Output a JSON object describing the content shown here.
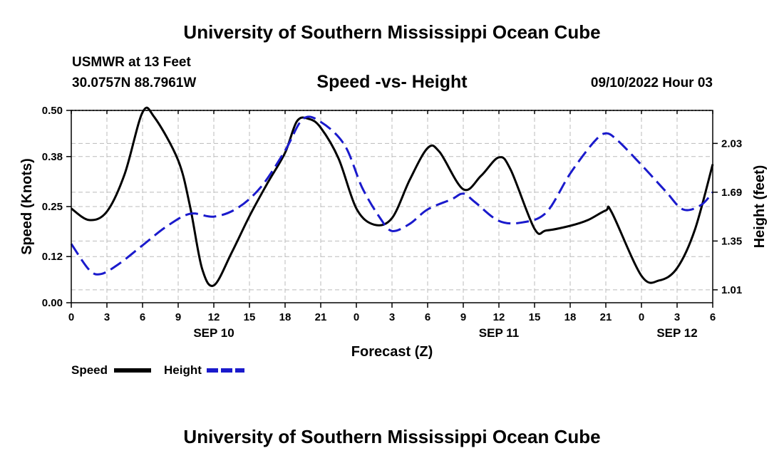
{
  "header": {
    "title": "University of Southern Mississippi Ocean Cube",
    "station": "USMWR at 13 Feet",
    "coordinates": "30.0757N  88.7961W",
    "chart_title": "Speed -vs- Height",
    "datetime": "09/10/2022 Hour 03"
  },
  "footer": {
    "title": "University of Southern Mississippi Ocean Cube"
  },
  "legend": {
    "speed_label": "Speed",
    "height_label": "Height"
  },
  "colors": {
    "speed": "#000000",
    "height": "#1a1acc",
    "grid": "#bbbbbb"
  },
  "chart_data": {
    "type": "line",
    "title": "Speed -vs- Height",
    "xlabel": "Forecast (Z)",
    "ylabel": "Speed (Knots)",
    "y2label": "Height (feet)",
    "x_unit": "hours since SEP 10 00Z",
    "xlim": [
      0,
      54
    ],
    "ylim": [
      0,
      0.5
    ],
    "y2lim": [
      0.92,
      2.26
    ],
    "x_ticks": [
      0,
      3,
      6,
      9,
      12,
      15,
      18,
      21,
      24,
      27,
      30,
      33,
      36,
      39,
      42,
      45,
      48,
      51,
      54
    ],
    "x_tick_labels": [
      "0",
      "3",
      "6",
      "9",
      "12",
      "15",
      "18",
      "21",
      "0",
      "3",
      "6",
      "9",
      "12",
      "15",
      "18",
      "21",
      "0",
      "3",
      "6"
    ],
    "date_labels": [
      {
        "x": 12,
        "label": "SEP 10"
      },
      {
        "x": 36,
        "label": "SEP 11"
      },
      {
        "x": 51,
        "label": "SEP 12"
      }
    ],
    "y_ticks": [
      0.0,
      0.12,
      0.25,
      0.38,
      0.5
    ],
    "y_tick_labels": [
      "0.00",
      "0.12",
      "0.25",
      "0.38",
      "0.50"
    ],
    "y2_ticks": [
      1.01,
      1.35,
      1.69,
      2.03
    ],
    "y2_tick_labels": [
      "1.01",
      "1.35",
      "1.69",
      "2.03"
    ],
    "grid": true,
    "legend_position": "bottom-left",
    "series": [
      {
        "name": "Speed",
        "axis": "left",
        "style": "solid",
        "x": [
          0,
          1.5,
          3,
          4.5,
          6,
          7,
          9,
          10,
          11,
          12,
          13.5,
          15,
          16.5,
          18,
          19,
          20,
          21,
          22.5,
          24,
          25.5,
          27,
          28.5,
          30,
          31,
          33,
          34.5,
          36,
          37,
          39,
          40,
          42,
          43.5,
          45,
          45.5,
          48,
          49.5,
          51,
          52.5,
          54
        ],
        "values": [
          0.245,
          0.215,
          0.237,
          0.335,
          0.495,
          0.482,
          0.37,
          0.25,
          0.09,
          0.045,
          0.13,
          0.225,
          0.31,
          0.39,
          0.472,
          0.478,
          0.455,
          0.375,
          0.245,
          0.203,
          0.22,
          0.32,
          0.402,
          0.392,
          0.295,
          0.33,
          0.378,
          0.345,
          0.192,
          0.188,
          0.2,
          0.215,
          0.24,
          0.235,
          0.07,
          0.058,
          0.09,
          0.19,
          0.36
        ]
      },
      {
        "name": "Height",
        "axis": "right",
        "style": "dashed",
        "x": [
          0,
          1.5,
          2.5,
          4,
          6,
          8,
          10,
          12,
          14,
          16,
          18,
          19.5,
          21,
          23,
          24.5,
          26,
          27,
          28.5,
          30,
          32,
          33,
          34,
          36,
          38,
          40,
          42,
          44,
          45,
          46,
          48,
          50,
          51.5,
          53,
          54
        ],
        "values": [
          1.33,
          1.15,
          1.12,
          1.19,
          1.32,
          1.45,
          1.54,
          1.52,
          1.58,
          1.73,
          1.98,
          2.2,
          2.18,
          2.02,
          1.72,
          1.51,
          1.42,
          1.47,
          1.57,
          1.64,
          1.68,
          1.62,
          1.49,
          1.48,
          1.55,
          1.82,
          2.04,
          2.1,
          2.05,
          1.88,
          1.7,
          1.57,
          1.6,
          1.69
        ]
      }
    ]
  }
}
